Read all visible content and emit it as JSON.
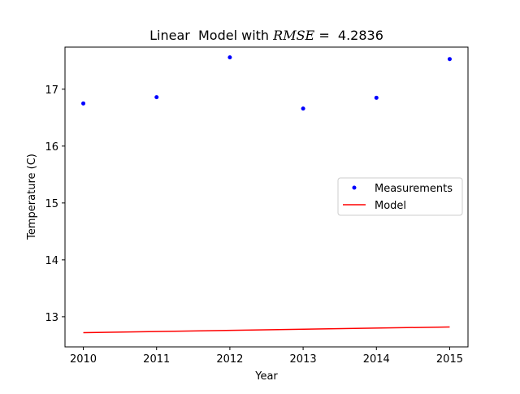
{
  "chart_data": {
    "type": "line",
    "title_prefix": "Linear  Model with ",
    "title_math": "RMSE",
    "title_suffix": " =  4.2836",
    "xlabel": "Year",
    "ylabel": "Temperature (C)",
    "xlim": [
      2009.75,
      2015.25
    ],
    "ylim": [
      12.47,
      17.74
    ],
    "x_ticks": [
      2010,
      2011,
      2012,
      2013,
      2014,
      2015
    ],
    "y_ticks": [
      13,
      14,
      15,
      16,
      17
    ],
    "grid": false,
    "legend_placement": "center-right",
    "series": [
      {
        "name": "Measurements",
        "kind": "scatter",
        "color": "#0000ff",
        "x": [
          2010,
          2011,
          2012,
          2013,
          2014,
          2015
        ],
        "y": [
          16.75,
          16.86,
          17.56,
          16.66,
          16.85,
          17.53
        ]
      },
      {
        "name": "Model",
        "kind": "line",
        "color": "#ff0000",
        "x": [
          2010,
          2015
        ],
        "y": [
          12.72,
          12.82
        ]
      }
    ]
  }
}
